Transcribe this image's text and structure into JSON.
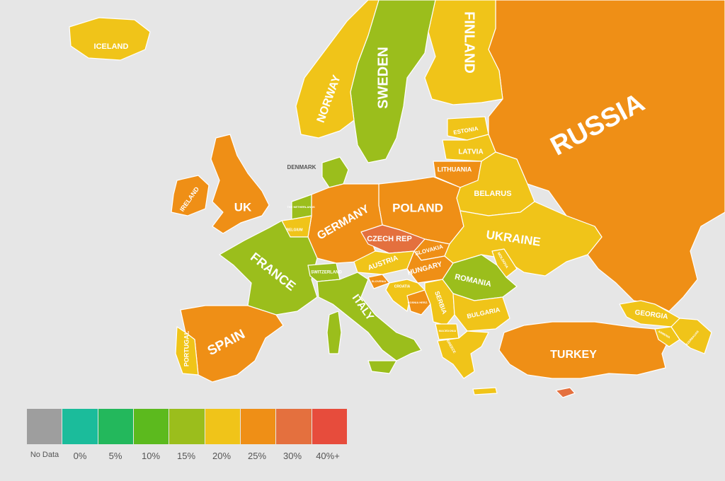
{
  "colors": {
    "background": "#e6e6e6",
    "no_data": "#9e9e9e",
    "p0": "#1bbc9b",
    "p5": "#23b85c",
    "p10": "#5cba1e",
    "p15": "#9bbe1c",
    "p20": "#f0c419",
    "p25": "#ef8f16",
    "p30": "#e4703e",
    "p40": "#e74c3c",
    "sea_lines": "#ffffff"
  },
  "legend": {
    "items": [
      {
        "label": "No Data",
        "color_key": "no_data"
      },
      {
        "label": "0%",
        "color_key": "p0"
      },
      {
        "label": "5%",
        "color_key": "p5"
      },
      {
        "label": "10%",
        "color_key": "p10"
      },
      {
        "label": "15%",
        "color_key": "p15"
      },
      {
        "label": "20%",
        "color_key": "p20"
      },
      {
        "label": "25%",
        "color_key": "p25"
      },
      {
        "label": "30%",
        "color_key": "p30"
      },
      {
        "label": "40%+",
        "color_key": "p40"
      }
    ]
  },
  "countries": {
    "russia": {
      "label": "RUSSIA",
      "bin": "25%"
    },
    "finland": {
      "label": "FINLAND",
      "bin": "20%"
    },
    "sweden": {
      "label": "SWEDEN",
      "bin": "15%"
    },
    "norway": {
      "label": "NORWAY",
      "bin": "20%"
    },
    "iceland": {
      "label": "ICELAND",
      "bin": "20%"
    },
    "uk": {
      "label": "UK",
      "bin": "25%"
    },
    "ireland": {
      "label": "IRELAND",
      "bin": "25%"
    },
    "denmark": {
      "label": "DENMARK",
      "bin": "15%"
    },
    "estonia": {
      "label": "ESTONIA",
      "bin": "20%"
    },
    "latvia": {
      "label": "LATVIA",
      "bin": "20%"
    },
    "lithuania": {
      "label": "LITHUANIA",
      "bin": "25%"
    },
    "belarus": {
      "label": "BELARUS",
      "bin": "20%"
    },
    "poland": {
      "label": "POLAND",
      "bin": "25%"
    },
    "germany": {
      "label": "GERMANY",
      "bin": "25%"
    },
    "netherlands": {
      "label": "THE NETHERLANDS",
      "bin": "15%"
    },
    "belgium": {
      "label": "BELGIUM",
      "bin": "20%"
    },
    "czech": {
      "label": "CZECH REP",
      "bin": "30%"
    },
    "slovakia": {
      "label": "SLOVAKIA",
      "bin": "25%"
    },
    "austria": {
      "label": "AUSTRIA",
      "bin": "20%"
    },
    "hungary": {
      "label": "HUNGARY",
      "bin": "25%"
    },
    "ukraine": {
      "label": "UKRAINE",
      "bin": "20%"
    },
    "moldova": {
      "label": "MOLDOVA",
      "bin": "20%"
    },
    "romania": {
      "label": "ROMANIA",
      "bin": "15%"
    },
    "france": {
      "label": "FRANCE",
      "bin": "15%"
    },
    "switzerland": {
      "label": "SWITZERLAND",
      "bin": "15%"
    },
    "italy": {
      "label": "ITALY",
      "bin": "15%"
    },
    "slovenia": {
      "label": "SLOVENIA",
      "bin": "25%"
    },
    "croatia": {
      "label": "CROATIA",
      "bin": "20%"
    },
    "bosnia": {
      "label": "BOSNIA HERZ.",
      "bin": "25%"
    },
    "serbia": {
      "label": "SERBIA",
      "bin": "20%"
    },
    "bulgaria": {
      "label": "BULGARIA",
      "bin": "20%"
    },
    "macedonia": {
      "label": "MACEDONIA",
      "bin": "20%"
    },
    "greece": {
      "label": "GREECE",
      "bin": "20%"
    },
    "spain": {
      "label": "SPAIN",
      "bin": "25%"
    },
    "portugal": {
      "label": "PORTUGAL",
      "bin": "20%"
    },
    "turkey": {
      "label": "TURKEY",
      "bin": "25%"
    },
    "georgia": {
      "label": "GEORGIA",
      "bin": "20%"
    },
    "armenia": {
      "label": "ARMENIA",
      "bin": "20%"
    },
    "azerbaijan": {
      "label": "AZERBAIJAN",
      "bin": "20%"
    },
    "cyprus": {
      "label": "",
      "bin": "30%"
    }
  }
}
